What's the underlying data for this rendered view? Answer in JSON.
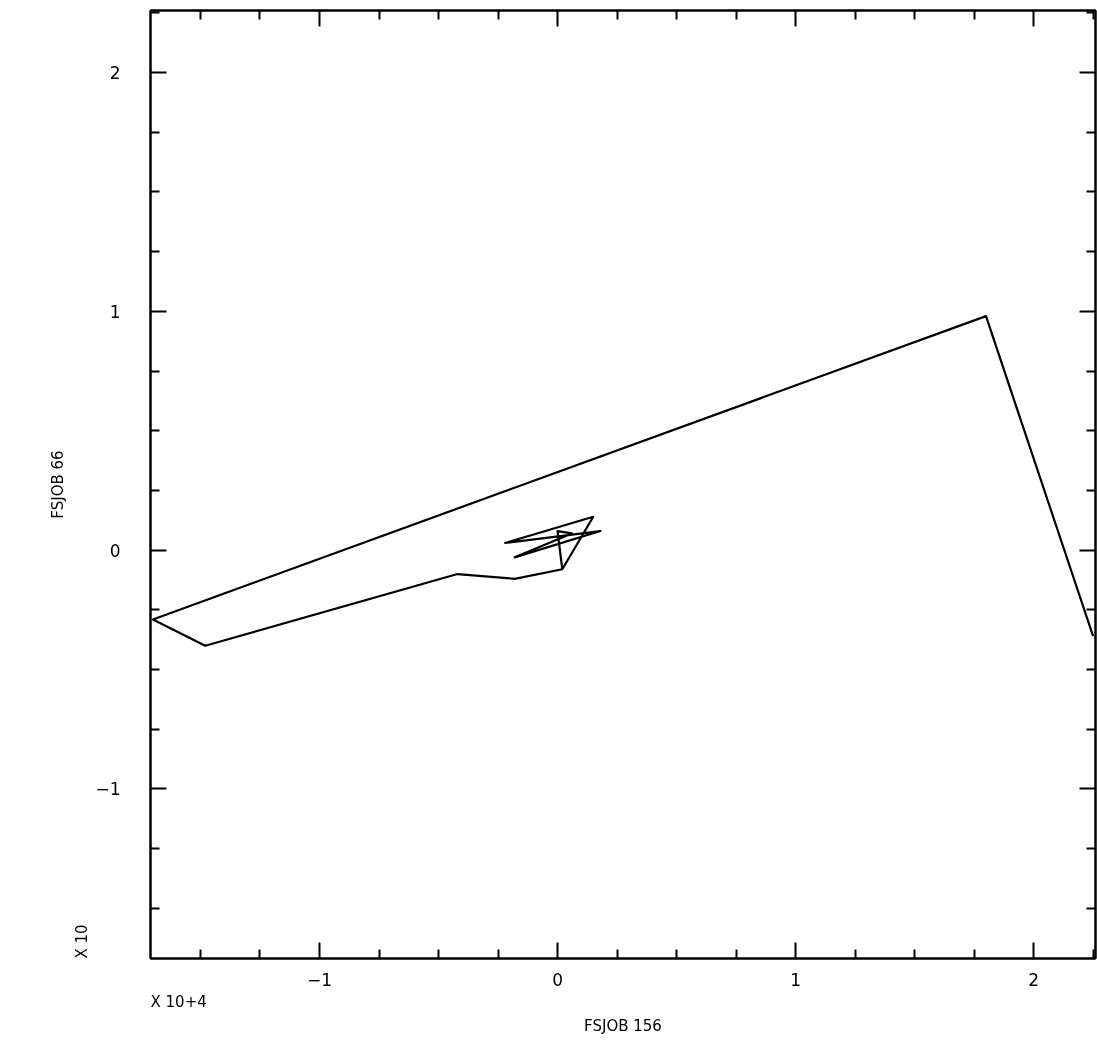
{
  "chart_data": {
    "type": "line",
    "xlabel": "FSJOB 156",
    "ylabel": "FSJOB 66",
    "annotations": [
      "X 10",
      "X 10+4"
    ],
    "x": [
      0.02,
      0.15,
      -0.22,
      0.18,
      -0.18,
      0.06,
      0.0,
      0.02,
      -0.18,
      -0.42,
      -1.48,
      -1.7,
      1.8,
      2.25
    ],
    "series": [
      {
        "color": "#000000",
        "values": [
          -0.08,
          0.14,
          0.03,
          0.08,
          -0.03,
          0.07,
          0.08,
          -0.08,
          -0.12,
          -0.1,
          -0.4,
          -0.29,
          0.98,
          -0.36
        ]
      }
    ],
    "xlim": [
      -1.71,
      2.26
    ],
    "ylim": [
      -1.71,
      2.26
    ],
    "xticks": [
      {
        "value": -1.5,
        "label": null
      },
      {
        "value": -1.25,
        "label": null
      },
      -1,
      {
        "value": -0.75,
        "label": null
      },
      {
        "value": -0.5,
        "label": null
      },
      {
        "value": -0.25,
        "label": null
      },
      0,
      {
        "value": 0.25,
        "label": null
      },
      {
        "value": 0.5,
        "label": null
      },
      {
        "value": 0.75,
        "label": null
      },
      1,
      {
        "value": 1.25,
        "label": null
      },
      {
        "value": 1.5,
        "label": null
      },
      {
        "value": 1.75,
        "label": null
      },
      2,
      {
        "value": 2.25,
        "label": null
      }
    ],
    "yticks": [
      {
        "value": -1.5,
        "label": null
      },
      {
        "value": -1.25,
        "label": null
      },
      -1,
      {
        "value": -0.75,
        "label": null
      },
      {
        "value": -0.5,
        "label": null
      },
      {
        "value": -0.25,
        "label": null
      },
      0,
      {
        "value": 0.25,
        "label": null
      },
      {
        "value": 0.5,
        "label": null
      },
      {
        "value": 0.75,
        "label": null
      },
      1,
      {
        "value": 1.25,
        "label": null
      },
      {
        "value": 1.5,
        "label": null
      },
      {
        "value": 1.75,
        "label": null
      },
      2,
      {
        "value": 2.25,
        "label": null
      }
    ],
    "grid": false,
    "marker": "none",
    "line_style": "solid"
  }
}
